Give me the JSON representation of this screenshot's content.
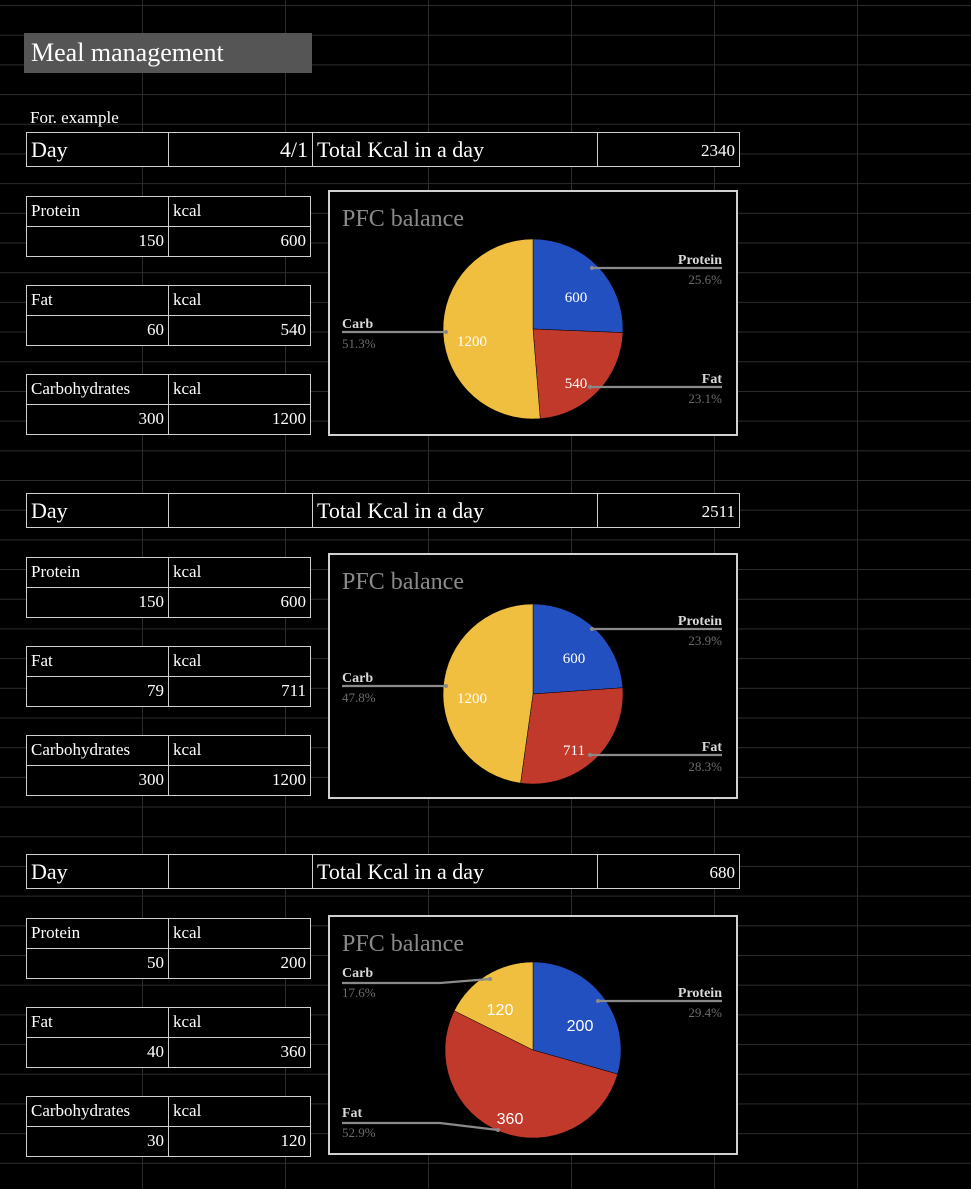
{
  "title": "Meal management",
  "example_label": "For. example",
  "days": [
    {
      "day_label": "Day",
      "day_value": "4/1",
      "total_label": "Total Kcal in a day",
      "total_value": "2340",
      "rows": [
        {
          "name": "Protein",
          "kcal_label": "kcal",
          "grams": "150",
          "kcal": "600"
        },
        {
          "name": "Fat",
          "kcal_label": "kcal",
          "grams": "60",
          "kcal": "540"
        },
        {
          "name": "Carbohydrates",
          "kcal_label": "kcal",
          "grams": "300",
          "kcal": "1200"
        }
      ]
    },
    {
      "day_label": "Day",
      "day_value": "",
      "total_label": "Total Kcal in a day",
      "total_value": "2511",
      "rows": [
        {
          "name": "Protein",
          "kcal_label": "kcal",
          "grams": "150",
          "kcal": "600"
        },
        {
          "name": "Fat",
          "kcal_label": "kcal",
          "grams": "79",
          "kcal": "711"
        },
        {
          "name": "Carbohydrates",
          "kcal_label": "kcal",
          "grams": "300",
          "kcal": "1200"
        }
      ]
    },
    {
      "day_label": "Day",
      "day_value": "",
      "total_label": "Total Kcal in a day",
      "total_value": "680",
      "rows": [
        {
          "name": "Protein",
          "kcal_label": "kcal",
          "grams": "50",
          "kcal": "200"
        },
        {
          "name": "Fat",
          "kcal_label": "kcal",
          "grams": "40",
          "kcal": "360"
        },
        {
          "name": "Carbohydrates",
          "kcal_label": "kcal",
          "grams": "30",
          "kcal": "120"
        }
      ]
    }
  ],
  "colors": {
    "protein": "#2350c0",
    "fat": "#c0392b",
    "carb": "#f0bf40"
  },
  "chart_data": [
    {
      "type": "pie",
      "title": "PFC balance",
      "labels": [
        "Protein",
        "Fat",
        "Carb"
      ],
      "values": [
        600,
        540,
        1200
      ],
      "value_labels": [
        "600",
        "540",
        "1200"
      ],
      "percent_labels": [
        "25.6%",
        "23.1%",
        "51.3%"
      ]
    },
    {
      "type": "pie",
      "title": "PFC balance",
      "labels": [
        "Protein",
        "Fat",
        "Carb"
      ],
      "values": [
        600,
        711,
        1200
      ],
      "value_labels": [
        "600",
        "711",
        "1200"
      ],
      "percent_labels": [
        "23.9%",
        "28.3%",
        "47.8%"
      ]
    },
    {
      "type": "pie",
      "title": "PFC balance",
      "labels": [
        "Protein",
        "Fat",
        "Carb"
      ],
      "values": [
        200,
        360,
        120
      ],
      "value_labels": [
        "200",
        "360",
        "120"
      ],
      "percent_labels": [
        "29.4%",
        "52.9%",
        "17.6%"
      ]
    }
  ]
}
